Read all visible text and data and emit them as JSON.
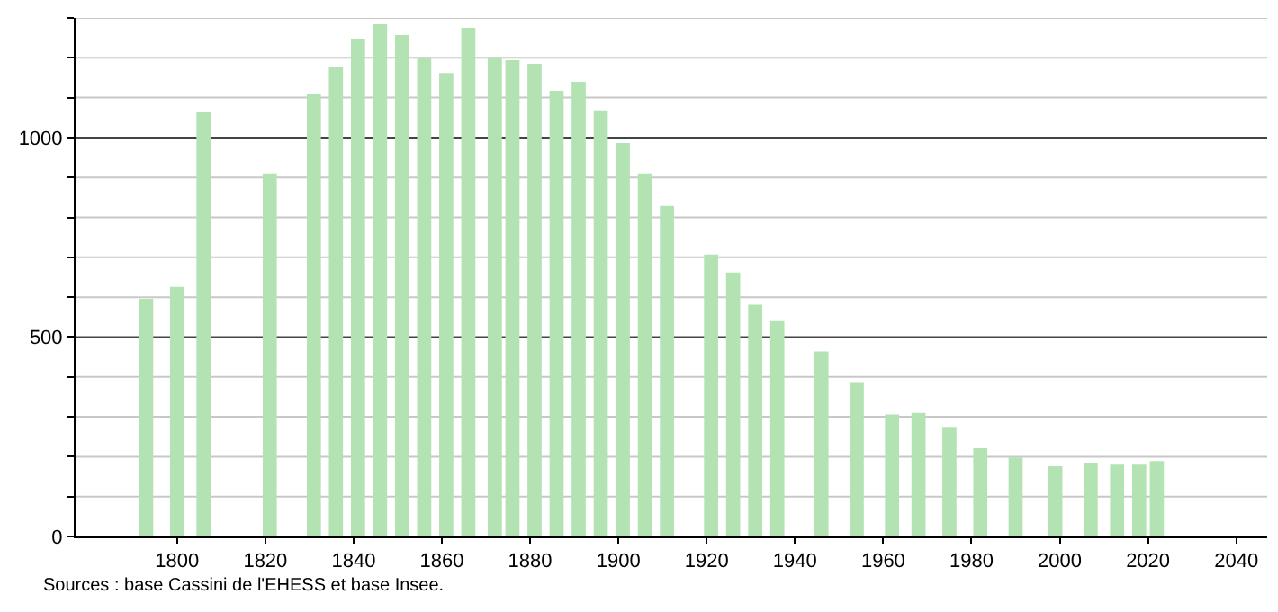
{
  "chart_data": {
    "type": "bar",
    "x": [
      1793,
      1800,
      1806,
      1821,
      1831,
      1836,
      1841,
      1846,
      1851,
      1856,
      1861,
      1866,
      1872,
      1876,
      1881,
      1886,
      1891,
      1896,
      1901,
      1906,
      1911,
      1921,
      1926,
      1931,
      1936,
      1946,
      1954,
      1962,
      1968,
      1975,
      1982,
      1990,
      1999,
      2007,
      2013,
      2018,
      2022
    ],
    "values": [
      596,
      626,
      1063,
      910,
      1108,
      1176,
      1248,
      1284,
      1257,
      1200,
      1162,
      1275,
      1202,
      1194,
      1185,
      1117,
      1140,
      1068,
      986,
      910,
      829,
      707,
      662,
      581,
      540,
      464,
      387,
      306,
      310,
      275,
      221,
      198,
      176,
      185,
      180,
      180,
      189
    ],
    "color": "#b3e3b3",
    "xlim": [
      1777,
      2047
    ],
    "xticks": [
      1800,
      1820,
      1840,
      1860,
      1880,
      1900,
      1920,
      1940,
      1960,
      1980,
      2000,
      2020,
      2040
    ],
    "ylim": [
      0,
      1300
    ],
    "yticks": [
      0,
      {
        "value": 100,
        "label": null
      },
      {
        "value": 200,
        "label": null
      },
      {
        "value": 300,
        "label": null
      },
      {
        "value": 400,
        "label": null
      },
      500,
      {
        "value": 600,
        "label": null
      },
      {
        "value": 700,
        "label": null
      },
      {
        "value": 800,
        "label": null
      },
      {
        "value": 900,
        "label": null
      },
      1000,
      {
        "value": 1100,
        "label": null
      },
      {
        "value": 1200,
        "label": null
      },
      {
        "value": 1300,
        "label": null
      }
    ],
    "grid": "y",
    "annotations": [
      "Sources : base Cassini de l'EHESS et base Insee."
    ]
  }
}
